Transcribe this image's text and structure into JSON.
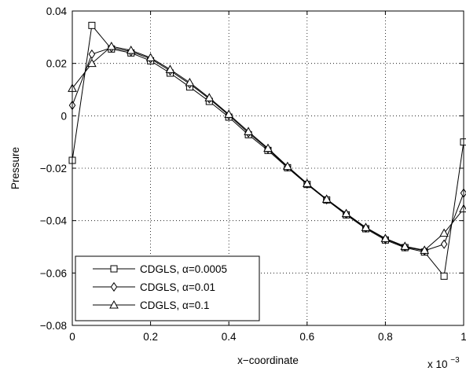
{
  "chart_data": {
    "type": "line",
    "xlabel": "x−coordinate",
    "ylabel": "Pressure",
    "x_multiplier": "x 10",
    "x_multiplier_exp": "−3",
    "xlim": [
      0,
      1
    ],
    "ylim": [
      -0.08,
      0.04
    ],
    "grid": true,
    "legend_position": "bottom-left",
    "x": [
      0,
      0.05,
      0.1,
      0.15,
      0.2,
      0.25,
      0.3,
      0.35,
      0.4,
      0.45,
      0.5,
      0.55,
      0.6,
      0.65,
      0.7,
      0.75,
      0.8,
      0.85,
      0.9,
      0.95,
      1.0
    ],
    "x_ticks": [
      {
        "value": 0,
        "label": "0"
      },
      {
        "value": 0.2,
        "label": "0.2"
      },
      {
        "value": 0.4,
        "label": "0.4"
      },
      {
        "value": 0.6,
        "label": "0.6"
      },
      {
        "value": 0.8,
        "label": "0.8"
      },
      {
        "value": 1.0,
        "label": "1"
      }
    ],
    "y_ticks": [
      {
        "value": 0.04,
        "label": "0.04"
      },
      {
        "value": 0.02,
        "label": "0.02"
      },
      {
        "value": 0,
        "label": "0"
      },
      {
        "value": -0.02,
        "label": "−0.02"
      },
      {
        "value": -0.04,
        "label": "−0.04"
      },
      {
        "value": -0.06,
        "label": "−0.06"
      },
      {
        "value": -0.08,
        "label": "−0.08"
      }
    ],
    "series": [
      {
        "name": "CDGLS, α=0.0005",
        "marker": "square",
        "values": [
          -0.017,
          0.0345,
          0.0255,
          0.024,
          0.021,
          0.0163,
          0.011,
          0.0055,
          -0.0005,
          -0.0072,
          -0.0132,
          -0.0198,
          -0.0262,
          -0.0321,
          -0.0378,
          -0.0431,
          -0.0474,
          -0.0503,
          -0.052,
          -0.0612,
          -0.01
        ]
      },
      {
        "name": "CDGLS, α=0.01",
        "marker": "diamond",
        "values": [
          0.004,
          0.0235,
          0.026,
          0.0245,
          0.0218,
          0.0172,
          0.0122,
          0.0065,
          0.0002,
          -0.0065,
          -0.0127,
          -0.0195,
          -0.026,
          -0.032,
          -0.0375,
          -0.0428,
          -0.047,
          -0.05,
          -0.0515,
          -0.049,
          -0.0295
        ]
      },
      {
        "name": "CDGLS, α=0.1",
        "marker": "triangle",
        "values": [
          0.0105,
          0.02,
          0.0265,
          0.025,
          0.0222,
          0.0177,
          0.0127,
          0.0069,
          0.0006,
          -0.006,
          -0.0124,
          -0.0193,
          -0.0258,
          -0.0318,
          -0.0373,
          -0.0426,
          -0.0468,
          -0.0498,
          -0.0513,
          -0.0448,
          -0.0355
        ]
      }
    ]
  }
}
